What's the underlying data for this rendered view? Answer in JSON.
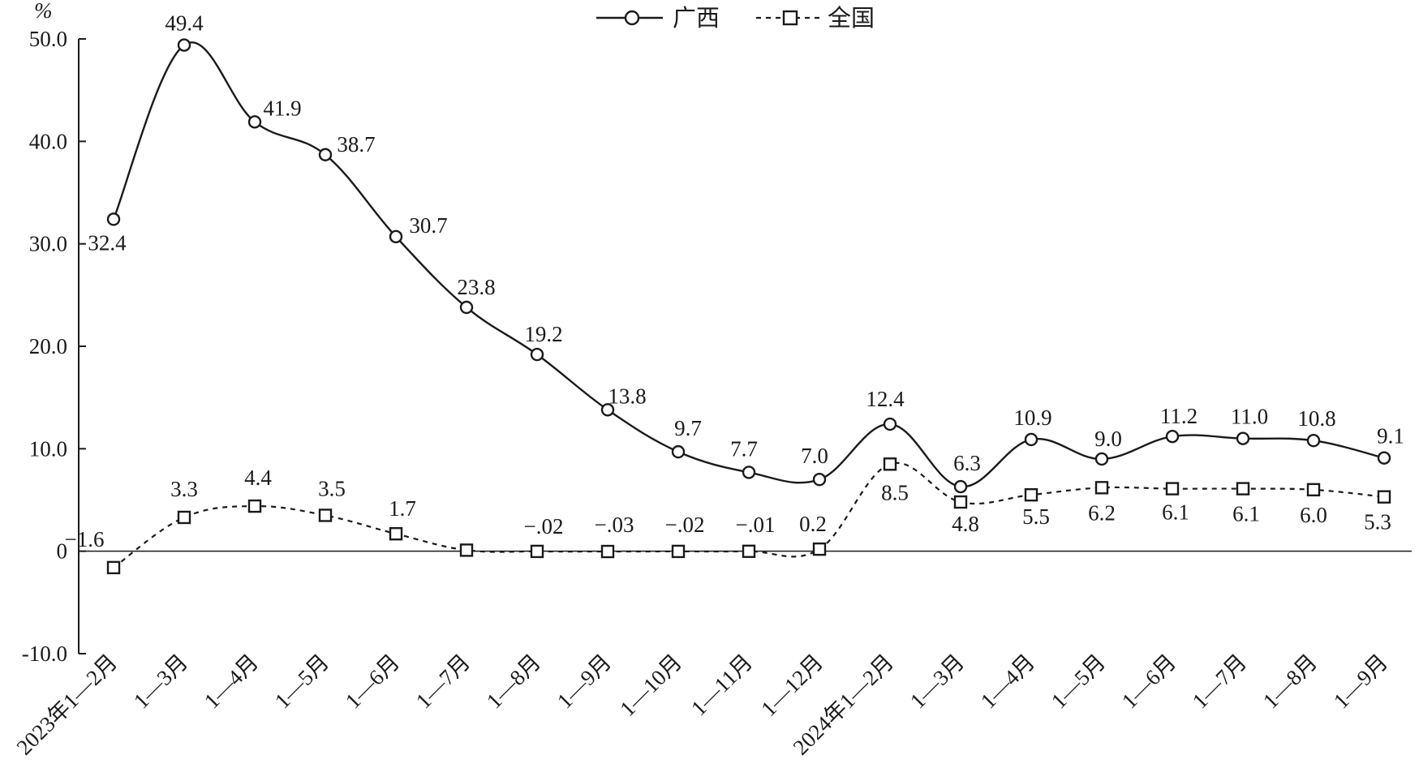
{
  "chart_data": {
    "type": "line",
    "ylabel": "%",
    "ylim": [
      -10,
      50
    ],
    "yticks": [
      -10,
      0,
      10,
      20,
      30,
      40,
      50
    ],
    "ytick_labels": [
      "-10.0",
      "0",
      "10.0",
      "20.0",
      "30.0",
      "40.0",
      "50.0"
    ],
    "grid": false,
    "legend": "top-center",
    "categories": [
      "2023年1—2月",
      "1—3月",
      "1—4月",
      "1—5月",
      "1—6月",
      "1—7月",
      "1—8月",
      "1—9月",
      "1—10月",
      "1—11月",
      "1—12月",
      "2024年1—2月",
      "1—3月",
      "1—4月",
      "1—5月",
      "1—6月",
      "1—7月",
      "1—8月",
      "1—9月"
    ],
    "series": [
      {
        "name": "广西",
        "marker": "circle",
        "style": "solid",
        "values": [
          32.4,
          49.4,
          41.9,
          38.7,
          30.7,
          23.8,
          19.2,
          13.8,
          9.7,
          7.7,
          7.0,
          12.4,
          6.3,
          10.9,
          9.0,
          11.2,
          11.0,
          10.8,
          9.1
        ],
        "labels": [
          "32.4",
          "49.4",
          "41.9",
          "38.7",
          "30.7",
          "23.8",
          "19.2",
          "13.8",
          "9.7",
          "7.7",
          "7.0",
          "12.4",
          "6.3",
          "10.9",
          "9.0",
          "11.2",
          "11.0",
          "10.8",
          "9.1"
        ]
      },
      {
        "name": "全国",
        "marker": "square",
        "style": "dashed",
        "values": [
          -1.6,
          3.3,
          4.4,
          3.5,
          1.7,
          0.1,
          -0.02,
          -0.03,
          -0.02,
          -0.01,
          0.2,
          8.5,
          4.8,
          5.5,
          6.2,
          6.1,
          6.1,
          6.0,
          5.3
        ],
        "labels": [
          "−1.6",
          "3.3",
          "4.4",
          "3.5",
          "1.7",
          "",
          "−.02",
          "−.03",
          "−.02",
          "−.01",
          "0.2",
          "8.5",
          "4.8",
          "5.5",
          "6.2",
          "6.1",
          "6.1",
          "6.0",
          "5.3"
        ]
      }
    ],
    "colors": {
      "line": "#1a1a1a",
      "background": "#ffffff"
    }
  }
}
